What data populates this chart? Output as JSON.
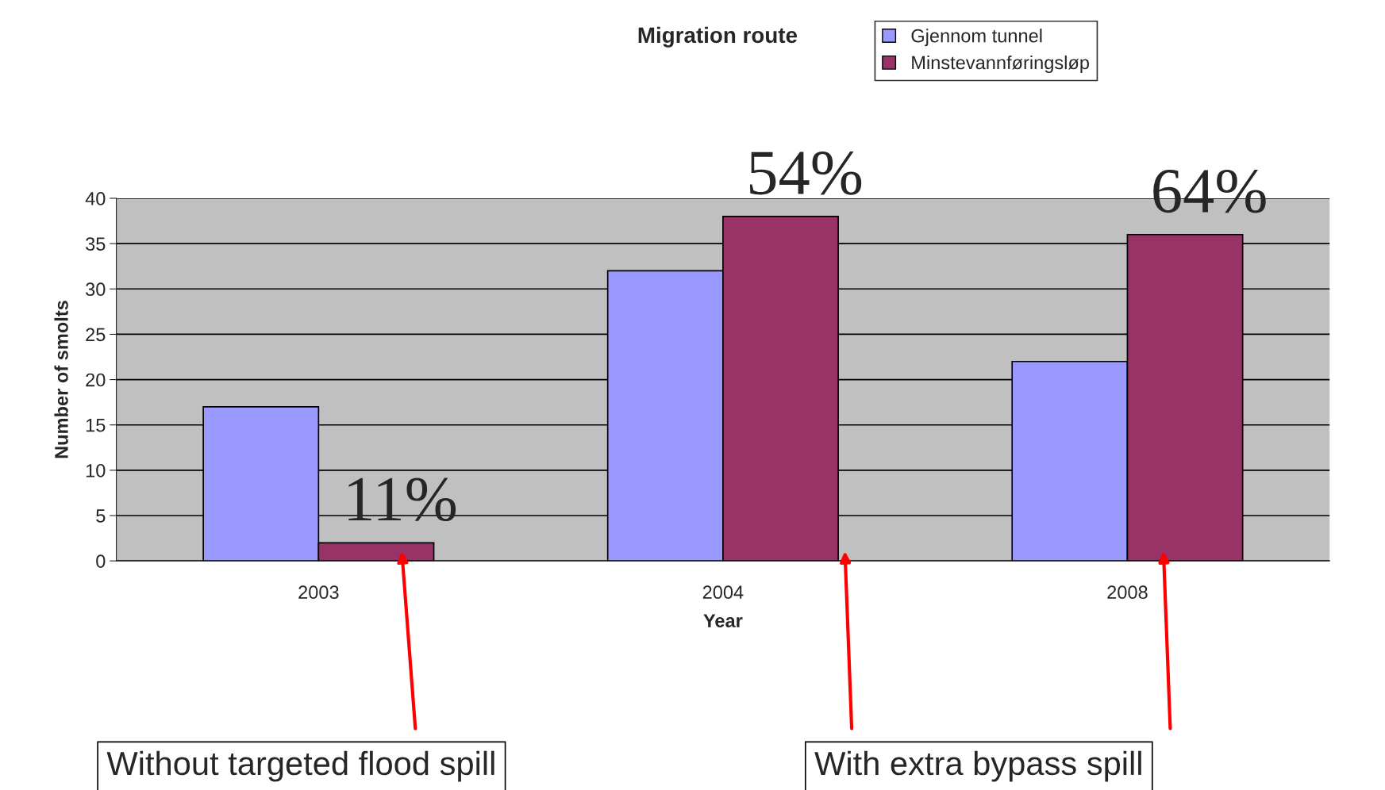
{
  "chart_data": {
    "type": "bar",
    "title": "Migration route",
    "xlabel": "Year",
    "ylabel": "Number of smolts",
    "categories": [
      "2003",
      "2004",
      "2008"
    ],
    "series": [
      {
        "name": "Gjennom tunnel",
        "color": "#9999ff",
        "values": [
          17,
          32,
          22
        ]
      },
      {
        "name": "Minstevannføringsløp",
        "color": "#993366",
        "values": [
          2,
          38,
          36
        ]
      }
    ],
    "ylim": [
      0,
      40
    ],
    "yticks": [
      0,
      5,
      10,
      15,
      20,
      25,
      30,
      35,
      40
    ],
    "grid": "y",
    "legend": "top right",
    "annotations": [
      {
        "text": "11%",
        "x": "2003",
        "y": 2
      },
      {
        "text": "54%",
        "x": "2004",
        "y": 38
      },
      {
        "text": "64%",
        "x": "2008",
        "y": 36
      },
      "Without targeted flood spill",
      "With extra bypass spill"
    ]
  }
}
